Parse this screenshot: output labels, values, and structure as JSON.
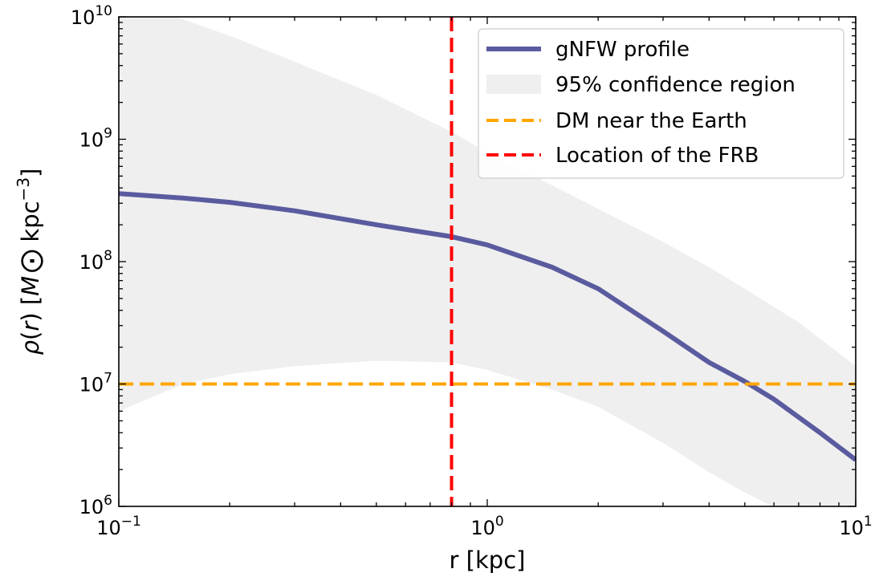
{
  "chart_data": {
    "type": "line",
    "title": "",
    "xlabel": "r [kpc]",
    "ylabel_parts": {
      "rho": "ρ",
      "r": "r",
      "msun": "M",
      "unit": "kpc",
      "exp": "−3"
    },
    "x_scale": "log",
    "y_scale": "log",
    "xlim": [
      0.1,
      10
    ],
    "ylim": [
      1000000,
      10000000000
    ],
    "x_ticks": [
      {
        "value": 0.1,
        "base": "10",
        "exp": "−1"
      },
      {
        "value": 1,
        "base": "10",
        "exp": "0"
      },
      {
        "value": 10,
        "base": "10",
        "exp": "1"
      }
    ],
    "y_ticks": [
      {
        "value": 1000000,
        "base": "10",
        "exp": "6"
      },
      {
        "value": 10000000,
        "base": "10",
        "exp": "7"
      },
      {
        "value": 100000000,
        "base": "10",
        "exp": "8"
      },
      {
        "value": 1000000000,
        "base": "10",
        "exp": "9"
      },
      {
        "value": 10000000000,
        "base": "10",
        "exp": "10"
      }
    ],
    "legend_position": "top-right",
    "series": [
      {
        "name": "gNFW profile",
        "kind": "line",
        "color": "#5a5b9f",
        "x": [
          0.1,
          0.15,
          0.2,
          0.3,
          0.5,
          0.8,
          1.0,
          1.5,
          2.0,
          3.0,
          4.0,
          5.0,
          6.0,
          8.0,
          10.0
        ],
        "y": [
          360000000,
          330000000,
          305000000,
          260000000,
          200000000,
          160000000,
          137000000,
          90000000,
          60000000,
          27000000,
          15000000,
          10500000,
          7500000,
          4000000,
          2400000
        ]
      },
      {
        "name": "95% confidence region",
        "kind": "band",
        "color": "#efefef",
        "x": [
          0.1,
          0.15,
          0.2,
          0.3,
          0.5,
          0.8,
          1.0,
          1.5,
          2.0,
          3.0,
          4.0,
          5.0,
          7.0,
          10.0
        ],
        "upper": [
          15000000000,
          9500000000,
          7000000000,
          4300000000,
          2300000000,
          1150000000,
          780000000,
          420000000,
          270000000,
          145000000,
          90000000,
          60000000,
          32000000,
          14000000
        ],
        "lower": [
          6000000,
          10000000,
          12000000,
          14000000,
          15500000,
          15000000,
          13000000,
          9000000,
          6500000,
          3300000,
          1900000,
          1300000,
          780000,
          420000
        ]
      },
      {
        "name": "DM near the Earth",
        "kind": "hline",
        "color": "#ffa500",
        "y": 10000000
      },
      {
        "name": "Location of the FRB",
        "kind": "vline",
        "color": "#ff0000",
        "x": 0.8
      }
    ],
    "grid": false
  }
}
